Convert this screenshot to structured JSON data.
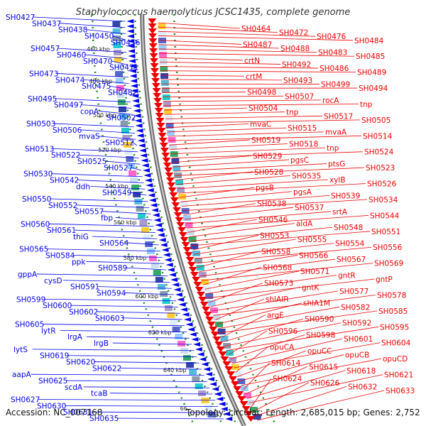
{
  "title": "Staphylococcus haemolyticus JCSC1435, complete genome",
  "accession": "Accession: NC_007168",
  "stats": "Topology: circular; Length: 2,685,015 bp; Genes: 2,752",
  "colors": {
    "forward": "#ee0000",
    "reverse": "#0000ee",
    "backbone": "#888888",
    "gc_ticks": "#228822"
  },
  "scale_labels": [
    "460 kbp",
    "480 kbp",
    "500 kbp",
    "520 kbp",
    "540 kbp",
    "560 kbp",
    "580 kbp",
    "600 kbp",
    "620 kbp",
    "640 kbp",
    "66"
  ],
  "left_labels": [
    "SH0427",
    "SH0437",
    "SH0438",
    "SH0450",
    "SH0456",
    "SH0457",
    "SH0460",
    "SH0470",
    "SH0471",
    "SH0473",
    "SH0474",
    "SH0475",
    "SH0482",
    "SH0495",
    "SH0497",
    "copA",
    "SH0502",
    "SH0503",
    "SH0506",
    "mvaS",
    "SH0512",
    "SH0513",
    "SH0522",
    "SH0525",
    "SH0527",
    "SH0530",
    "SH0542",
    "ddh",
    "SH0549",
    "SH0550",
    "SH0552",
    "SH0557",
    "fbp",
    "SH0560",
    "SH0561",
    "thiG",
    "SH0564",
    "SH0565",
    "SH0584",
    "ppk",
    "SH0589",
    "gppA",
    "cysD",
    "SH0591",
    "SH0594",
    "SH0599",
    "SH0600",
    "SH0602",
    "SH0603",
    "SH0605",
    "lytR",
    "lrgA",
    "lrgB",
    "lytS",
    "SH0619",
    "SH0620",
    "SH0622",
    "aapA",
    "SH0625",
    "scdA",
    "tcaB",
    "SH0627",
    "SH0630",
    "SH0631",
    "SH0635"
  ],
  "right_labels": [
    "SH0464",
    "SH0472",
    "SH0476",
    "SH0484",
    "SH0487",
    "SH0488",
    "SH0483",
    "SH0485",
    "crtN",
    "SH0492",
    "SH0486",
    "SH0489",
    "crtM",
    "SH0493",
    "SH0499",
    "SH0494",
    "SH0498",
    "SH0507",
    "rocA",
    "tnp",
    "SH0504",
    "tnp",
    "SH0517",
    "SH0505",
    "mvaC",
    "SH0515",
    "mvaA",
    "SH0514",
    "SH0519",
    "SH0518",
    "tnp",
    "SH0524",
    "SH0529",
    "pgsC",
    "ptsG",
    "SH0523",
    "SH0528",
    "SH0535",
    "xylB",
    "SH0526",
    "pgsB",
    "pgsA",
    "SH0539",
    "SH0534",
    "SH0538",
    "SH0537",
    "srtA",
    "SH0544",
    "SH0546",
    "aldA",
    "SH0548",
    "SH0551",
    "SH0553",
    "SH0555",
    "SH0554",
    "SH0556",
    "SH0558",
    "SH0566",
    "SH0567",
    "SH0569",
    "SH0568",
    "SH0571",
    "gntR",
    "gntP",
    "SH0573",
    "gntK",
    "SH0577",
    "SH0578",
    "shlAIR",
    "shlA1M",
    "SH0582",
    "SH0585",
    "argE",
    "SH0590",
    "SH0592",
    "SH0595",
    "SH0596",
    "SH0598",
    "SH0601",
    "SH0604",
    "opuCA",
    "opuCC",
    "opuCB",
    "opuCD",
    "SH0614",
    "SH0615",
    "SH0618",
    "SH0621",
    "SH0624",
    "SH0626",
    "SH0632",
    "SH0633"
  ]
}
